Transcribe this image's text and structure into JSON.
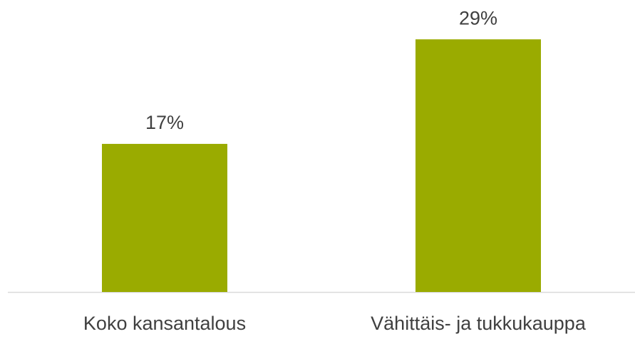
{
  "chart_data": {
    "type": "bar",
    "categories": [
      "Koko kansantalous",
      "Vähittäis- ja tukkukauppa"
    ],
    "values": [
      17,
      29
    ],
    "value_labels": [
      "17%",
      "29%"
    ],
    "color": "#9aab00",
    "ylim": [
      0,
      30
    ]
  }
}
